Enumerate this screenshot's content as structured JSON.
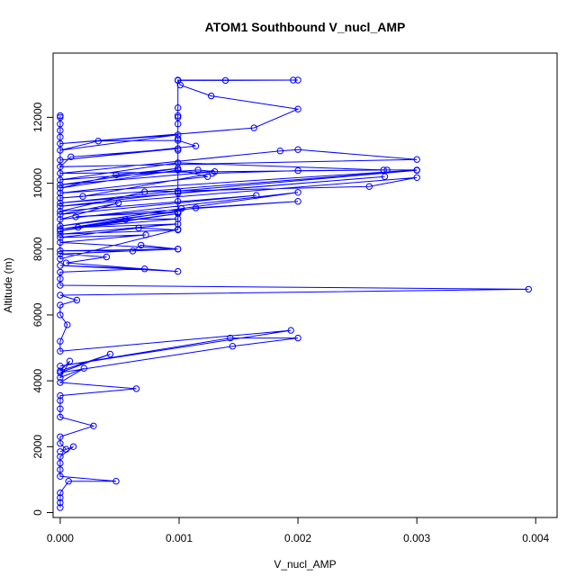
{
  "chart_data": {
    "type": "line",
    "title": "ATOM1 Southbound V_nucl_AMP",
    "xlabel": "V_nucl_AMP",
    "ylabel": "Altitude (m)",
    "xlim": [
      -6e-05,
      0.00418
    ],
    "ylim": [
      -150,
      13950
    ],
    "x_ticks": [
      "0.000",
      "0.001",
      "0.002",
      "0.003",
      "0.004"
    ],
    "x_tick_values": [
      0,
      0.001,
      0.002,
      0.003,
      0.004
    ],
    "y_ticks": [
      "0",
      "2000",
      "4000",
      "6000",
      "8000",
      "10000",
      "12000"
    ],
    "y_tick_values": [
      0,
      2000,
      4000,
      6000,
      8000,
      10000,
      12000
    ],
    "grid": false,
    "legend": "none",
    "marker": "open-circle",
    "series_color": "#0000ff",
    "series": [
      {
        "points": [
          [
            0,
            150
          ],
          [
            0,
            300
          ],
          [
            0,
            450
          ],
          [
            0,
            600
          ],
          [
            7e-05,
            950
          ],
          [
            0.00047,
            950
          ],
          [
            0,
            1100
          ],
          [
            0,
            1300
          ],
          [
            0,
            1500
          ],
          [
            0,
            1700
          ],
          [
            0.00011,
            2000
          ],
          [
            0,
            1850
          ],
          [
            5e-05,
            1920
          ],
          [
            0,
            2100
          ],
          [
            0,
            2300
          ],
          [
            0.00028,
            2630
          ],
          [
            0,
            2900
          ],
          [
            0,
            3150
          ],
          [
            0,
            3400
          ],
          [
            0,
            3550
          ],
          [
            0.00064,
            3760
          ],
          [
            0,
            3950
          ],
          [
            0.0002,
            4380
          ],
          [
            0,
            4100
          ],
          [
            8e-05,
            4600
          ],
          [
            0,
            4300
          ],
          [
            0.00042,
            4810
          ],
          [
            0,
            4250
          ],
          [
            0.00145,
            5050
          ],
          [
            0.002,
            5300
          ],
          [
            0.00143,
            5300
          ],
          [
            0,
            4450
          ],
          [
            0.00194,
            5530
          ],
          [
            0,
            4900
          ],
          [
            0,
            5200
          ],
          [
            6e-05,
            5700
          ],
          [
            0,
            6000
          ],
          [
            0,
            6300
          ],
          [
            0.00014,
            6450
          ],
          [
            0,
            6600
          ],
          [
            0.00394,
            6780
          ],
          [
            0,
            6900
          ],
          [
            0,
            7100
          ],
          [
            0,
            7300
          ],
          [
            0.00071,
            7400
          ],
          [
            0,
            7500
          ],
          [
            0.00099,
            7320
          ],
          [
            5e-05,
            7580
          ],
          [
            0.00039,
            7760
          ],
          [
            0,
            7850
          ],
          [
            0.00099,
            8000
          ],
          [
            0,
            7950
          ],
          [
            0.00061,
            7940
          ],
          [
            0.00068,
            8120
          ],
          [
            0.00099,
            8000
          ],
          [
            0,
            8200
          ],
          [
            0.00072,
            8430
          ],
          [
            0,
            8350
          ],
          [
            0.00066,
            8640
          ],
          [
            0.00099,
            8580
          ],
          [
            0,
            8450
          ],
          [
            0.00099,
            8760
          ],
          [
            0.00015,
            8660
          ],
          [
            0.00099,
            8920
          ],
          [
            0.00055,
            8900
          ],
          [
            0,
            8550
          ],
          [
            0.00099,
            9080
          ],
          [
            0,
            8600
          ],
          [
            0.00114,
            9250
          ],
          [
            0.002,
            9450
          ],
          [
            0.00013,
            8980
          ],
          [
            0.00099,
            9130
          ],
          [
            0,
            8700
          ],
          [
            0.00102,
            9230
          ],
          [
            0.002,
            9720
          ],
          [
            0,
            8900
          ],
          [
            0.00049,
            9400
          ],
          [
            0,
            9050
          ],
          [
            0.00165,
            9630
          ],
          [
            0,
            9150
          ],
          [
            0.00071,
            9740
          ],
          [
            0.0026,
            9900
          ],
          [
            0.003,
            10170
          ],
          [
            0,
            9300
          ],
          [
            0.00099,
            9700
          ],
          [
            0.00273,
            10200
          ],
          [
            0,
            9400
          ],
          [
            0.00099,
            9760
          ],
          [
            0.003,
            10390
          ],
          [
            0,
            9550
          ],
          [
            0.00019,
            9600
          ],
          [
            0.00128,
            10300
          ],
          [
            0.002,
            10380
          ],
          [
            0.00275,
            10400
          ],
          [
            0.003,
            10400
          ],
          [
            0,
            9700
          ],
          [
            0.00124,
            10200
          ],
          [
            0.00099,
            10400
          ],
          [
            0,
            9850
          ],
          [
            0.00047,
            10250
          ],
          [
            0.00099,
            10450
          ],
          [
            0,
            9950
          ],
          [
            0.0013,
            10350
          ],
          [
            0.00116,
            10400
          ],
          [
            0,
            10100
          ],
          [
            0.00099,
            10620
          ],
          [
            0.00272,
            10400
          ],
          [
            0,
            10300
          ],
          [
            0.00185,
            10980
          ],
          [
            0.002,
            11020
          ],
          [
            0.003,
            10720
          ],
          [
            0,
            10500
          ],
          [
            9e-05,
            10800
          ],
          [
            0.00099,
            11050
          ],
          [
            0,
            10700
          ],
          [
            0.00114,
            11130
          ],
          [
            0.00099,
            11300
          ],
          [
            0.00032,
            11280
          ],
          [
            0,
            11000
          ],
          [
            0.00099,
            11470
          ],
          [
            0,
            11200
          ],
          [
            0.00163,
            11680
          ],
          [
            0.002,
            12250
          ],
          [
            0.00127,
            12650
          ],
          [
            0.00101,
            12980
          ],
          [
            0.00099,
            13120
          ],
          [
            0.00139,
            13120
          ],
          [
            0.002,
            13130
          ],
          [
            0.00196,
            13130
          ],
          [
            0.00099,
            13130
          ],
          [
            0.00099,
            12290
          ],
          [
            0.00099,
            12050
          ],
          [
            0.00099,
            12000
          ],
          [
            0.00099,
            11800
          ],
          [
            0.00099,
            11350
          ],
          [
            0.00099,
            11000
          ],
          [
            0.00099,
            10400
          ],
          [
            0.00099,
            9750
          ],
          [
            0.00099,
            9450
          ],
          [
            0.00099,
            9100
          ],
          [
            0.00099,
            8600
          ],
          [
            0,
            7700
          ],
          [
            0,
            11400
          ],
          [
            0,
            11600
          ],
          [
            0,
            11800
          ],
          [
            0,
            12000
          ],
          [
            0,
            12050
          ]
        ]
      }
    ]
  }
}
